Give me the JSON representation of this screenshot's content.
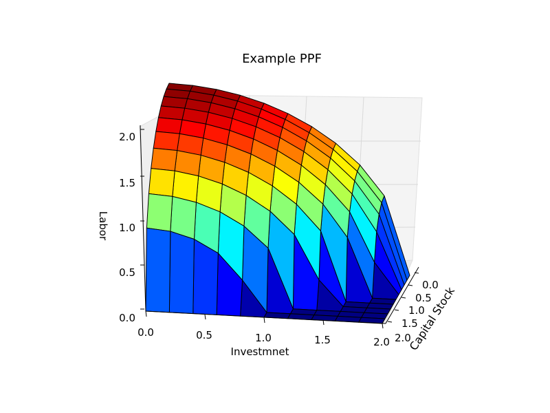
{
  "chart_data": {
    "type": "surface3d",
    "title": "Example PPF",
    "xlabel": "Investmnet",
    "ylabel": "Capital Stock",
    "zlabel": "Labor",
    "xlim": [
      0,
      2
    ],
    "ylim": [
      0,
      2
    ],
    "zlim": [
      0,
      2
    ],
    "x_ticks": [
      "0.0",
      "0.5",
      "1.0",
      "1.5",
      "2.0"
    ],
    "y_ticks": [
      "0.0",
      "0.5",
      "1.0",
      "1.5",
      "2.0"
    ],
    "z_ticks": [
      "0.0",
      "0.5",
      "1.0",
      "1.5",
      "2.0"
    ],
    "surface": {
      "equation": "x^2 + y^2 + z^2 = 4",
      "radius": 2,
      "colormap": "jet",
      "grid_lines": "black"
    },
    "background": {
      "pane_color": "#f2f2f2",
      "grid_color": "#d9d9d9"
    }
  }
}
